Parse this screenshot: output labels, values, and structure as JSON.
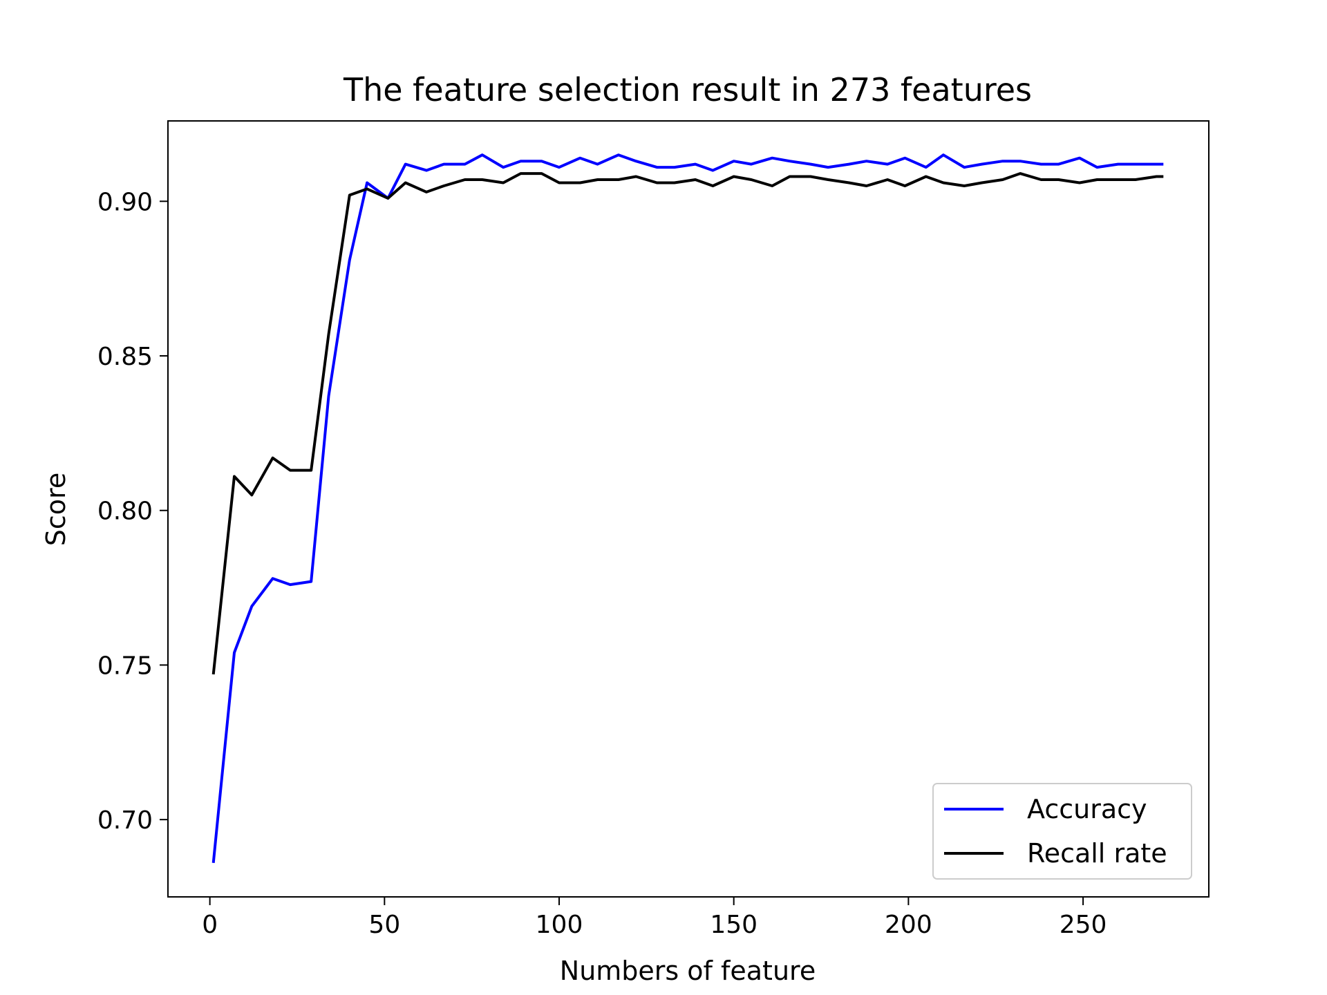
{
  "chart_data": {
    "type": "line",
    "title": "The feature selection result in 273 features",
    "xlabel": "Numbers of feature",
    "ylabel": "Score",
    "xlim": [
      -12,
      286
    ],
    "ylim": [
      0.675,
      0.926
    ],
    "xticks": [
      0,
      50,
      100,
      150,
      200,
      250
    ],
    "yticks": [
      0.7,
      0.75,
      0.8,
      0.85,
      0.9
    ],
    "grid": false,
    "legend_position": "lower-right",
    "x": [
      1,
      7,
      12,
      18,
      23,
      29,
      34,
      40,
      45,
      51,
      56,
      62,
      67,
      73,
      78,
      84,
      89,
      95,
      100,
      106,
      111,
      117,
      122,
      128,
      133,
      139,
      144,
      150,
      155,
      161,
      166,
      172,
      177,
      183,
      188,
      194,
      199,
      205,
      210,
      216,
      221,
      227,
      232,
      238,
      243,
      249,
      254,
      260,
      265,
      271,
      273
    ],
    "series": [
      {
        "name": "Accuracy",
        "color": "#0000ff",
        "values": [
          0.686,
          0.754,
          0.769,
          0.778,
          0.776,
          0.777,
          0.837,
          0.881,
          0.906,
          0.901,
          0.912,
          0.91,
          0.912,
          0.912,
          0.915,
          0.911,
          0.913,
          0.913,
          0.911,
          0.914,
          0.912,
          0.915,
          0.913,
          0.911,
          0.911,
          0.912,
          0.91,
          0.913,
          0.912,
          0.914,
          0.913,
          0.912,
          0.911,
          0.912,
          0.913,
          0.912,
          0.914,
          0.911,
          0.915,
          0.911,
          0.912,
          0.913,
          0.913,
          0.912,
          0.912,
          0.914,
          0.911,
          0.912,
          0.912,
          0.912,
          0.912
        ]
      },
      {
        "name": "Recall rate",
        "color": "#000000",
        "values": [
          0.747,
          0.811,
          0.805,
          0.817,
          0.813,
          0.813,
          0.857,
          0.902,
          0.904,
          0.901,
          0.906,
          0.903,
          0.905,
          0.907,
          0.907,
          0.906,
          0.909,
          0.909,
          0.906,
          0.906,
          0.907,
          0.907,
          0.908,
          0.906,
          0.906,
          0.907,
          0.905,
          0.908,
          0.907,
          0.905,
          0.908,
          0.908,
          0.907,
          0.906,
          0.905,
          0.907,
          0.905,
          0.908,
          0.906,
          0.905,
          0.906,
          0.907,
          0.909,
          0.907,
          0.907,
          0.906,
          0.907,
          0.907,
          0.907,
          0.908,
          0.908
        ]
      }
    ]
  }
}
